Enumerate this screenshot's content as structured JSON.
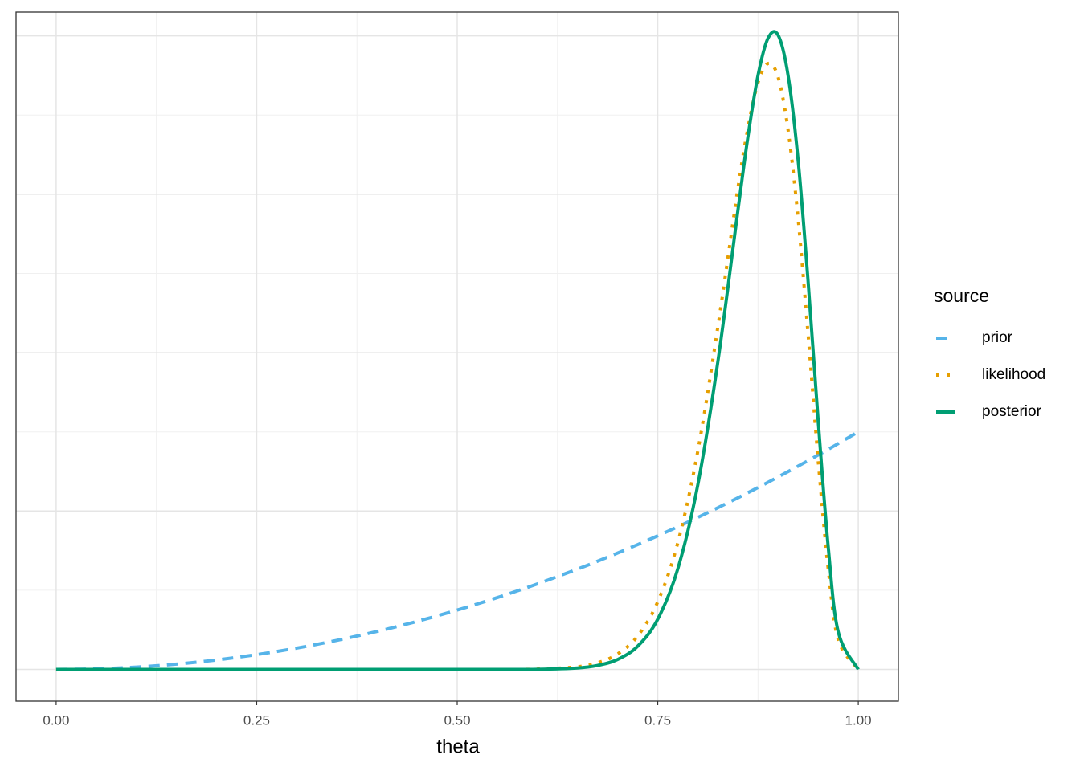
{
  "chart_data": {
    "type": "line",
    "x_label": "theta",
    "legend_title": "source",
    "legend_position": "right",
    "x": [
      0,
      0.05,
      0.1,
      0.15,
      0.2,
      0.25,
      0.3,
      0.35,
      0.4,
      0.45,
      0.5,
      0.55,
      0.6,
      0.65,
      0.675,
      0.7,
      0.725,
      0.75,
      0.775,
      0.8,
      0.825,
      0.85,
      0.8625,
      0.875,
      0.8875,
      0.9,
      0.9125,
      0.925,
      0.9375,
      0.95,
      0.9625,
      0.975,
      1
    ],
    "series": [
      {
        "name": "prior",
        "color": "#56B4E9",
        "linetype": "dashed",
        "values": [
          0,
          0.0075,
          0.03,
          0.0675,
          0.12,
          0.1875,
          0.27,
          0.3675,
          0.48,
          0.6075,
          0.75,
          0.9075,
          1.08,
          1.2675,
          1.3669,
          1.47,
          1.5769,
          1.6875,
          1.8019,
          1.92,
          2.0419,
          2.1675,
          2.2317,
          2.2969,
          2.363,
          2.43,
          2.498,
          2.5669,
          2.6367,
          2.7075,
          2.7792,
          2.8519,
          3
        ]
      },
      {
        "name": "likelihood",
        "color": "#E69F00",
        "linetype": "dotted",
        "values": [
          0,
          0,
          0,
          0,
          0,
          0,
          0,
          0,
          0,
          0,
          0,
          0,
          0.0044,
          0.0338,
          0.084,
          0.195,
          0.423,
          0.855,
          1.6,
          2.76,
          4.33,
          6.08,
          6.84,
          7.41,
          7.65,
          7.48,
          6.81,
          5.69,
          4.22,
          2.64,
          1.27,
          0.378,
          0
        ]
      },
      {
        "name": "posterior",
        "color": "#009E73",
        "linetype": "solid",
        "values": [
          0,
          0,
          0,
          0,
          0,
          0,
          0,
          0,
          0,
          0,
          0,
          0,
          0.0021,
          0.0188,
          0.0505,
          0.126,
          0.294,
          0.635,
          1.27,
          2.334,
          3.89,
          5.8,
          6.73,
          7.5,
          7.97,
          8.01,
          7.5,
          6.43,
          4.89,
          3.14,
          1.55,
          0.475,
          0
        ]
      }
    ],
    "xlim": [
      -0.05,
      1.05
    ],
    "ylim": [
      -0.4,
      8.3
    ],
    "xticks": [
      {
        "value": 0,
        "label": "0.00"
      },
      {
        "value": 0.25,
        "label": "0.25"
      },
      {
        "value": 0.5,
        "label": "0.50"
      },
      {
        "value": 0.75,
        "label": "0.75"
      },
      {
        "value": 1,
        "label": "1.00"
      }
    ],
    "xminor": [
      0.125,
      0.375,
      0.625,
      0.875
    ],
    "yticks": [
      0,
      2,
      4,
      6,
      8
    ],
    "yminor": [
      1,
      3,
      5,
      7
    ],
    "y_tick_labels": false,
    "grid": true
  }
}
